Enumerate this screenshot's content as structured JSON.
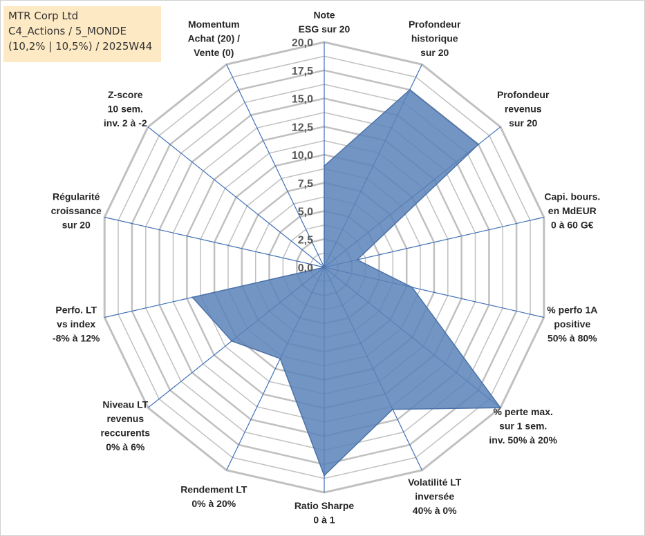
{
  "info": {
    "company": "MTR Corp Ltd",
    "portfolio": "C4_Actions / 5_MONDE",
    "period": "(10,2% | 10,5%) / 2025W44"
  },
  "colors": {
    "fill": "#5b82b8",
    "stroke": "#4a72a8",
    "grid": "#c0c0c0",
    "spoke": "#3f6fb5"
  },
  "chart_data": {
    "type": "radar",
    "title": "",
    "rmin": 0,
    "rmax": 20,
    "ticks": [
      "0,0",
      "2,5",
      "5,0",
      "7,5",
      "10,0",
      "12,5",
      "15,0",
      "17,5",
      "20,0"
    ],
    "axes": [
      {
        "lines": [
          "Note",
          "ESG sur 20"
        ],
        "value": 9.0
      },
      {
        "lines": [
          "Profondeur",
          "historique",
          "sur 20"
        ],
        "value": 17.5
      },
      {
        "lines": [
          "Profondeur",
          "revenus",
          "sur 20"
        ],
        "value": 17.5
      },
      {
        "lines": [
          "Capi. bours.",
          "en MdEUR",
          "0 à 60 G€"
        ],
        "value": 3.0
      },
      {
        "lines": [
          "% perfo 1A",
          "positive",
          "50% à 80%"
        ],
        "value": 8.0
      },
      {
        "lines": [
          "% perte max.",
          "sur 1 sem.",
          "inv. 50% à 20%"
        ],
        "value": 20.0
      },
      {
        "lines": [
          "Volatilité LT",
          "inversée",
          "40% à 0%"
        ],
        "value": 14.0
      },
      {
        "lines": [
          "Ratio Sharpe",
          "0 à 1"
        ],
        "value": 18.5
      },
      {
        "lines": [
          "Rendement LT",
          "0% à 20%"
        ],
        "value": 9.0
      },
      {
        "lines": [
          "Niveau LT",
          "revenus",
          "reccurents",
          "0% à 6%"
        ],
        "value": 10.5
      },
      {
        "lines": [
          "Perfo. LT",
          "vs index",
          "-8% à 12%"
        ],
        "value": 12.0
      },
      {
        "lines": [
          "Régularité",
          "croissance",
          "sur 20"
        ],
        "value": 0.0
      },
      {
        "lines": [
          "Z-score",
          "10 sem.",
          "inv. 2 à -2"
        ],
        "value": 0.0
      },
      {
        "lines": [
          "Momentum",
          "Achat (20) /",
          "Vente (0)"
        ],
        "value": 0.0
      }
    ]
  }
}
